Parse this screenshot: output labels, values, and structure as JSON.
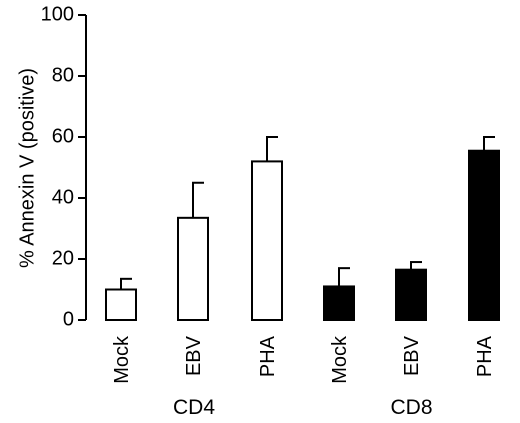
{
  "chart_data": {
    "type": "bar",
    "ylabel": "% Annexin V (positive)",
    "ylim": [
      0,
      100
    ],
    "yticks": [
      0,
      20,
      40,
      60,
      80,
      100
    ],
    "categories": [
      "Mock",
      "EBV",
      "PHA",
      "Mock",
      "EBV",
      "PHA"
    ],
    "groups": [
      {
        "label": "CD4",
        "members": [
          0,
          1,
          2
        ],
        "fill": "#ffffff"
      },
      {
        "label": "CD8",
        "members": [
          3,
          4,
          5
        ],
        "fill": "#000000"
      }
    ],
    "values": [
      10,
      33.5,
      52,
      11,
      16.5,
      55.5
    ],
    "error_upper": [
      13.5,
      45,
      60,
      17,
      19,
      60
    ],
    "grid": false
  }
}
